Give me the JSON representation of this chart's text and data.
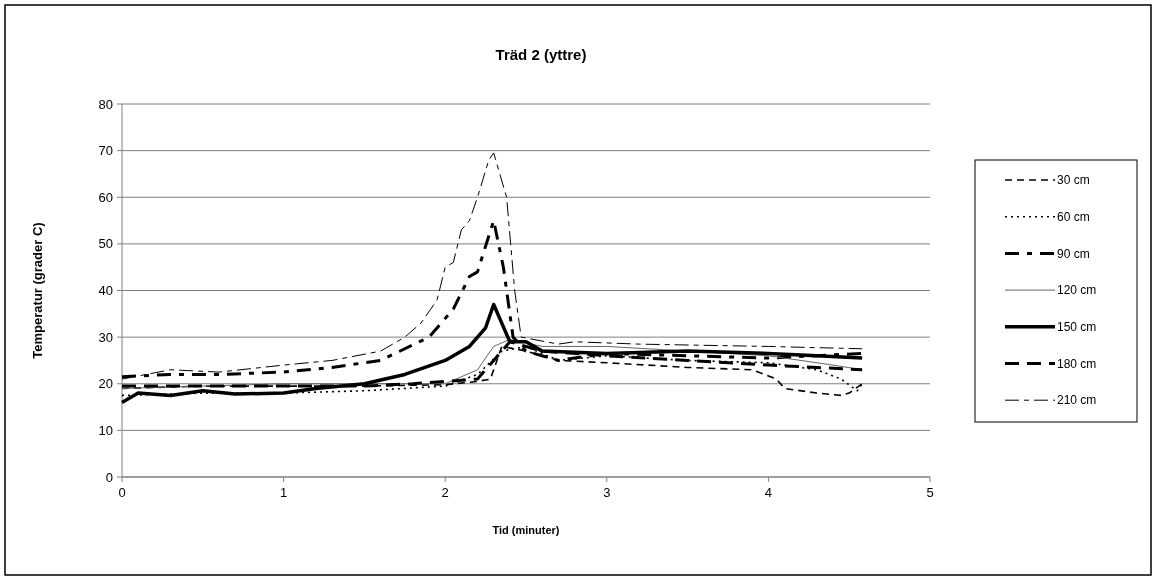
{
  "chart_data": {
    "type": "line",
    "title": "Träd 2 (yttre)",
    "xlabel": "Tid (minuter)",
    "ylabel": "Temperatur (grader C)",
    "xlim": [
      0,
      5
    ],
    "xticks": [
      0,
      1,
      2,
      3,
      4,
      5
    ],
    "ylim": [
      0,
      80
    ],
    "yticks": [
      0,
      10,
      20,
      30,
      40,
      50,
      60,
      70,
      80
    ],
    "grid": "y",
    "legend": "right",
    "marker": "none",
    "series": [
      {
        "name": "30 cm",
        "color": "#000000",
        "line_style": "dashed",
        "x": [
          0,
          0.5,
          1,
          1.5,
          2,
          2.2,
          2.28,
          2.35,
          2.5,
          2.7,
          3,
          3.5,
          3.9,
          4.05,
          4.1,
          4.3,
          4.45,
          4.5,
          4.58
        ],
        "values": [
          19,
          19.5,
          19.5,
          19.5,
          19.8,
          20.5,
          21,
          28,
          27,
          25,
          24.5,
          23.5,
          23,
          21,
          19,
          18,
          17.5,
          18,
          20
        ]
      },
      {
        "name": "60 cm",
        "color": "#000000",
        "line_style": "dotted",
        "x": [
          0,
          0.5,
          1,
          1.5,
          2,
          2.2,
          2.35,
          2.5,
          2.7,
          3,
          3.5,
          4,
          4.3,
          4.45,
          4.55,
          4.58
        ],
        "values": [
          17.5,
          18,
          18,
          18.5,
          19.5,
          22,
          27,
          28,
          25,
          26,
          25,
          24.5,
          23,
          21,
          18.5,
          20
        ]
      },
      {
        "name": "90 cm",
        "color": "#000000",
        "line_style": "dashed",
        "x": [
          0,
          0.3,
          0.6,
          1,
          1.3,
          1.6,
          1.9,
          2.05,
          2.15,
          2.2,
          2.3,
          2.36,
          2.42,
          2.5,
          2.7,
          3,
          3.5,
          4,
          4.58
        ],
        "values": [
          21.5,
          22,
          22,
          22.5,
          23.5,
          25,
          30,
          36,
          43,
          44,
          55,
          45,
          30,
          27,
          25,
          26.5,
          26,
          25.5,
          26.5
        ]
      },
      {
        "name": "120 cm",
        "color": "#666666",
        "line_style": "solid",
        "x": [
          0,
          0.5,
          1,
          1.5,
          2,
          2.2,
          2.3,
          2.4,
          2.6,
          3,
          3.5,
          4,
          4.4,
          4.58
        ],
        "values": [
          19,
          19.5,
          20,
          20,
          20,
          23,
          28,
          29.5,
          28,
          28,
          27,
          26,
          24,
          23
        ]
      },
      {
        "name": "150 cm",
        "color": "#000000",
        "line_style": "solid",
        "x": [
          0,
          0.1,
          0.3,
          0.5,
          0.7,
          1,
          1.2,
          1.5,
          1.75,
          2,
          2.15,
          2.25,
          2.3,
          2.35,
          2.4,
          2.5,
          2.6,
          3,
          3.5,
          4,
          4.3,
          4.58
        ],
        "values": [
          16,
          18,
          17.5,
          18.5,
          17.8,
          18,
          19,
          20,
          22,
          25,
          28,
          32,
          37,
          33,
          29,
          29,
          27,
          26.5,
          27,
          26.5,
          26,
          25.5
        ]
      },
      {
        "name": "180 cm",
        "color": "#000000",
        "line_style": "dashed",
        "x": [
          0,
          0.5,
          1,
          1.5,
          1.8,
          2.2,
          2.3,
          2.4,
          2.6,
          3,
          3.5,
          4,
          4.3,
          4.58
        ],
        "values": [
          19.5,
          19.5,
          19.5,
          19.5,
          20,
          21,
          25,
          29,
          27,
          26,
          25,
          24,
          23.5,
          23
        ]
      },
      {
        "name": "210 cm",
        "color": "#000000",
        "line_style": "dashed",
        "x": [
          0,
          0.3,
          0.6,
          1,
          1.3,
          1.6,
          1.75,
          1.85,
          1.95,
          2,
          2.05,
          2.1,
          2.15,
          2.2,
          2.27,
          2.3,
          2.38,
          2.43,
          2.47,
          2.7,
          2.8,
          3.2,
          4,
          4.58
        ],
        "values": [
          21,
          23,
          22.5,
          24,
          25,
          27,
          30,
          33,
          38,
          45,
          46,
          53,
          55,
          60,
          68,
          69.5,
          60,
          40,
          30,
          28.5,
          29,
          28.5,
          28,
          27.5
        ]
      }
    ]
  }
}
